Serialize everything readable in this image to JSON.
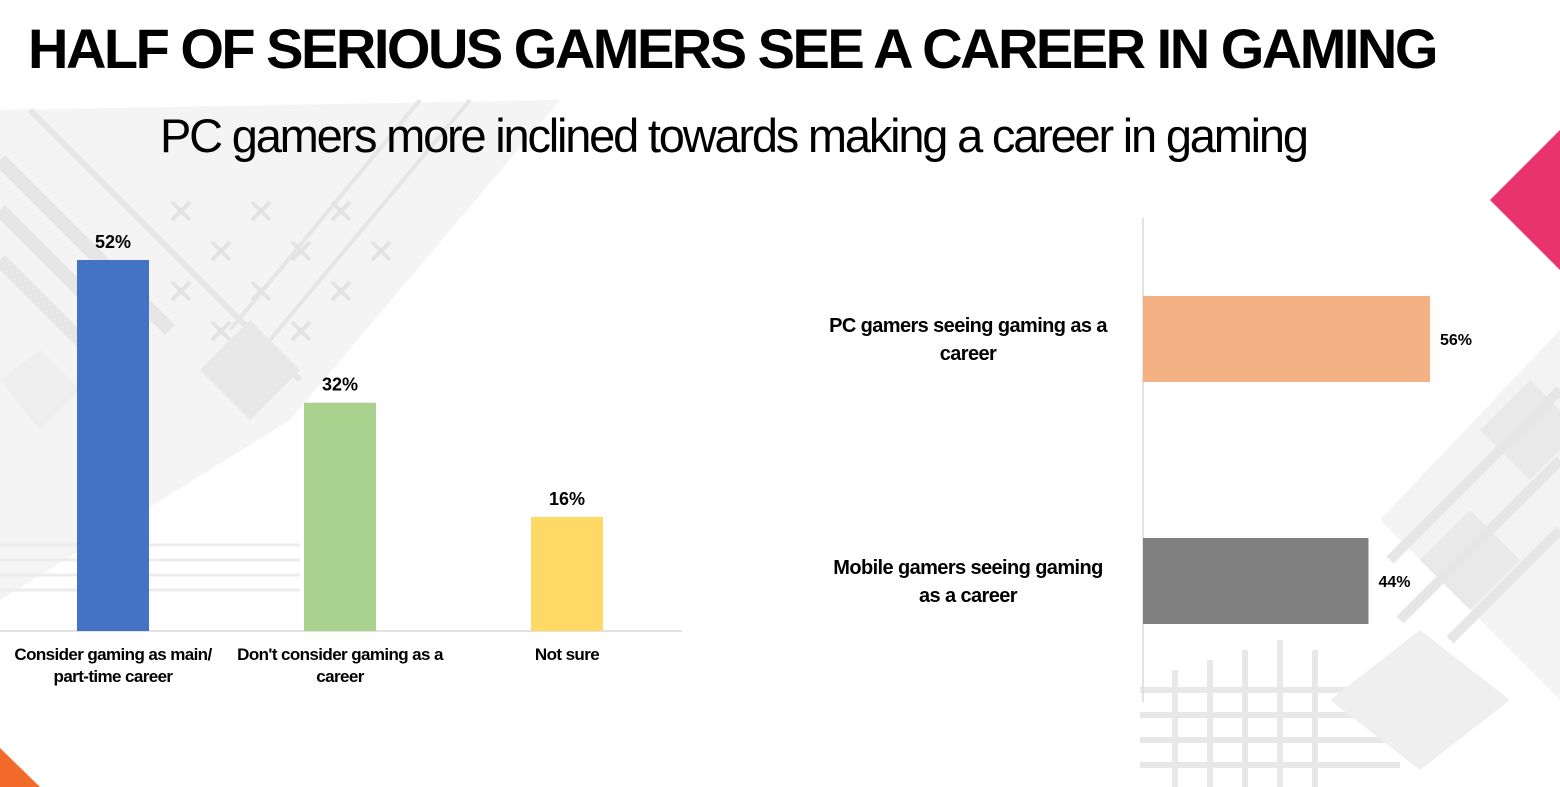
{
  "slide": {
    "title": "HALF OF SERIOUS GAMERS SEE A CAREER IN GAMING",
    "subtitle": "PC gamers more inclined towards making a career in gaming"
  },
  "colors": {
    "accent_pink": "#e8336e",
    "accent_orange": "#f26b2a",
    "pattern": "#e6e6e6"
  },
  "chart_data": [
    {
      "type": "bar",
      "orientation": "vertical",
      "categories": [
        [
          "Consider gaming as main/",
          "part-time career"
        ],
        [
          "Don't consider gaming as a",
          "career"
        ],
        [
          "Not sure"
        ]
      ],
      "values": [
        52,
        32,
        16
      ],
      "value_labels": [
        "52%",
        "32%",
        "16%"
      ],
      "colors": [
        "#4472c4",
        "#a9d18e",
        "#ffd966"
      ],
      "ylim": [
        0,
        52
      ],
      "grid": false,
      "legend": "none"
    },
    {
      "type": "bar",
      "orientation": "horizontal",
      "categories": [
        [
          "PC gamers seeing gaming as a",
          "career"
        ],
        [
          "Mobile gamers seeing gaming",
          "as a career"
        ]
      ],
      "values": [
        56,
        44
      ],
      "value_labels": [
        "56%",
        "44%"
      ],
      "colors": [
        "#f4b183",
        "#808080"
      ],
      "xlim": [
        0,
        56
      ],
      "grid": false,
      "legend": "none"
    }
  ]
}
